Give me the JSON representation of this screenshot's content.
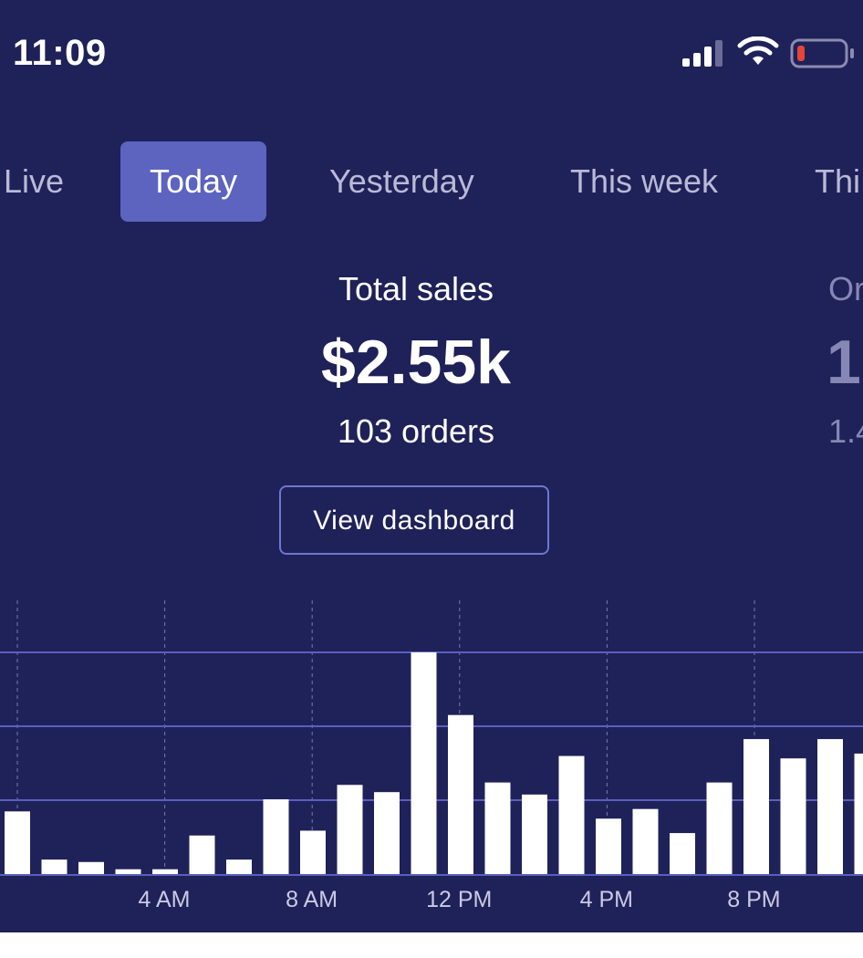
{
  "status_bar": {
    "time": "11:09",
    "icons": [
      "cellular-signal-icon",
      "wifi-icon",
      "battery-low-icon"
    ]
  },
  "tabs": [
    {
      "label": "Live",
      "active": false
    },
    {
      "label": "Today",
      "active": true
    },
    {
      "label": "Yesterday",
      "active": false
    },
    {
      "label": "This week",
      "active": false
    },
    {
      "label": "Thi",
      "active": false
    }
  ],
  "metrics": {
    "primary": {
      "label": "Total sales",
      "value": "$2.55k",
      "sub": "103 orders"
    },
    "next_partial": {
      "label": "Or",
      "value": "1",
      "sub": "1.4"
    }
  },
  "view_dashboard_label": "View dashboard",
  "colors": {
    "background": "#1f2159",
    "active_tab": "#5c64bf",
    "button_border": "#6f76d2",
    "bar": "#ffffff",
    "gridline": "#5a5fc0"
  },
  "chart_data": {
    "type": "bar",
    "x_tick_labels": [
      "4 AM",
      "8 AM",
      "12 PM",
      "4 PM",
      "8 PM"
    ],
    "gridlines": 3,
    "y_axis_labels": false,
    "values": [
      26,
      6,
      5,
      2,
      2,
      16,
      6,
      31,
      18,
      37,
      34,
      92,
      66,
      38,
      33,
      49,
      23,
      27,
      17,
      38,
      56,
      48,
      56,
      50
    ],
    "ylim": [
      0,
      92
    ]
  }
}
